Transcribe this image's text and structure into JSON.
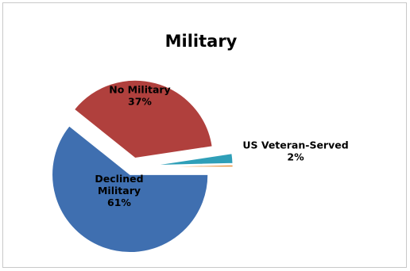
{
  "chart_data": {
    "type": "pie",
    "title": "Military",
    "slices": [
      {
        "label": "Declined Military",
        "value": 61,
        "percent_label": "61%",
        "color": "#3f6fb0",
        "label_color": "#000000"
      },
      {
        "label": "No Military",
        "value": 37,
        "percent_label": "37%",
        "color": "#b0403d",
        "label_color": "#000000"
      },
      {
        "label": "US Veteran-Served",
        "value": 2,
        "percent_label": "2%",
        "color": "#2f9fb8",
        "label_color": "#000000"
      },
      {
        "label": "",
        "value": 0.4,
        "percent_label": "",
        "color": "#e8913c",
        "label_color": "#000000"
      }
    ],
    "legend": "none",
    "exploded": true
  }
}
